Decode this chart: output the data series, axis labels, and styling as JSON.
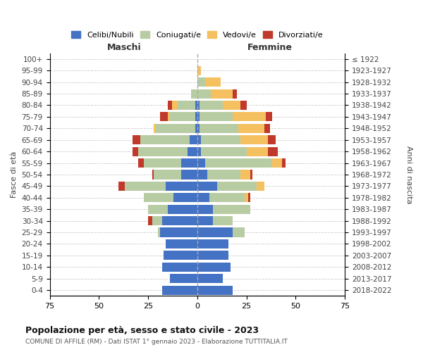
{
  "age_groups": [
    "0-4",
    "5-9",
    "10-14",
    "15-19",
    "20-24",
    "25-29",
    "30-34",
    "35-39",
    "40-44",
    "45-49",
    "50-54",
    "55-59",
    "60-64",
    "65-69",
    "70-74",
    "75-79",
    "80-84",
    "85-89",
    "90-94",
    "95-99",
    "100+"
  ],
  "birth_years": [
    "2018-2022",
    "2013-2017",
    "2008-2012",
    "2003-2007",
    "1998-2002",
    "1993-1997",
    "1988-1992",
    "1983-1987",
    "1978-1982",
    "1973-1977",
    "1968-1972",
    "1963-1967",
    "1958-1962",
    "1953-1957",
    "1948-1952",
    "1943-1947",
    "1938-1942",
    "1933-1937",
    "1928-1932",
    "1923-1927",
    "≤ 1922"
  ],
  "males": {
    "celibe": [
      18,
      14,
      18,
      17,
      16,
      19,
      18,
      15,
      12,
      16,
      8,
      8,
      5,
      4,
      1,
      1,
      1,
      0,
      0,
      0,
      0
    ],
    "coniugato": [
      0,
      0,
      0,
      0,
      0,
      1,
      5,
      10,
      15,
      21,
      14,
      19,
      25,
      25,
      20,
      13,
      9,
      3,
      0,
      0,
      0
    ],
    "vedovo": [
      0,
      0,
      0,
      0,
      0,
      0,
      0,
      0,
      0,
      0,
      0,
      0,
      0,
      0,
      1,
      1,
      3,
      0,
      0,
      0,
      0
    ],
    "divorziato": [
      0,
      0,
      0,
      0,
      0,
      0,
      2,
      0,
      0,
      3,
      1,
      3,
      3,
      4,
      0,
      4,
      2,
      0,
      0,
      0,
      0
    ]
  },
  "females": {
    "nubile": [
      18,
      13,
      17,
      16,
      16,
      18,
      8,
      8,
      6,
      10,
      5,
      4,
      2,
      2,
      1,
      1,
      1,
      0,
      0,
      0,
      0
    ],
    "coniugata": [
      0,
      0,
      0,
      0,
      0,
      6,
      10,
      19,
      18,
      20,
      17,
      34,
      23,
      20,
      20,
      17,
      12,
      7,
      4,
      0,
      0
    ],
    "vedova": [
      0,
      0,
      0,
      0,
      0,
      0,
      0,
      0,
      2,
      4,
      5,
      5,
      11,
      14,
      13,
      17,
      9,
      11,
      8,
      2,
      0
    ],
    "divorziata": [
      0,
      0,
      0,
      0,
      0,
      0,
      0,
      0,
      1,
      0,
      1,
      2,
      5,
      4,
      3,
      3,
      3,
      2,
      0,
      0,
      0
    ]
  },
  "colors": {
    "celibe": "#4472c4",
    "coniugato": "#b8cca4",
    "vedovo": "#f5c060",
    "divorziato": "#c0392b"
  },
  "xlim": 75,
  "title": "Popolazione per età, sesso e stato civile - 2023",
  "subtitle": "COMUNE DI AFFILE (RM) - Dati ISTAT 1° gennaio 2023 - Elaborazione TUTTITALIA.IT",
  "ylabel": "Fasce di età",
  "ylabel2": "Anni di nascita",
  "xlabel_maschi": "Maschi",
  "xlabel_femmine": "Femmine",
  "legend_labels": [
    "Celibi/Nubili",
    "Coniugati/e",
    "Vedovi/e",
    "Divorziati/e"
  ],
  "bg_color": "#ffffff",
  "grid_color": "#cccccc"
}
